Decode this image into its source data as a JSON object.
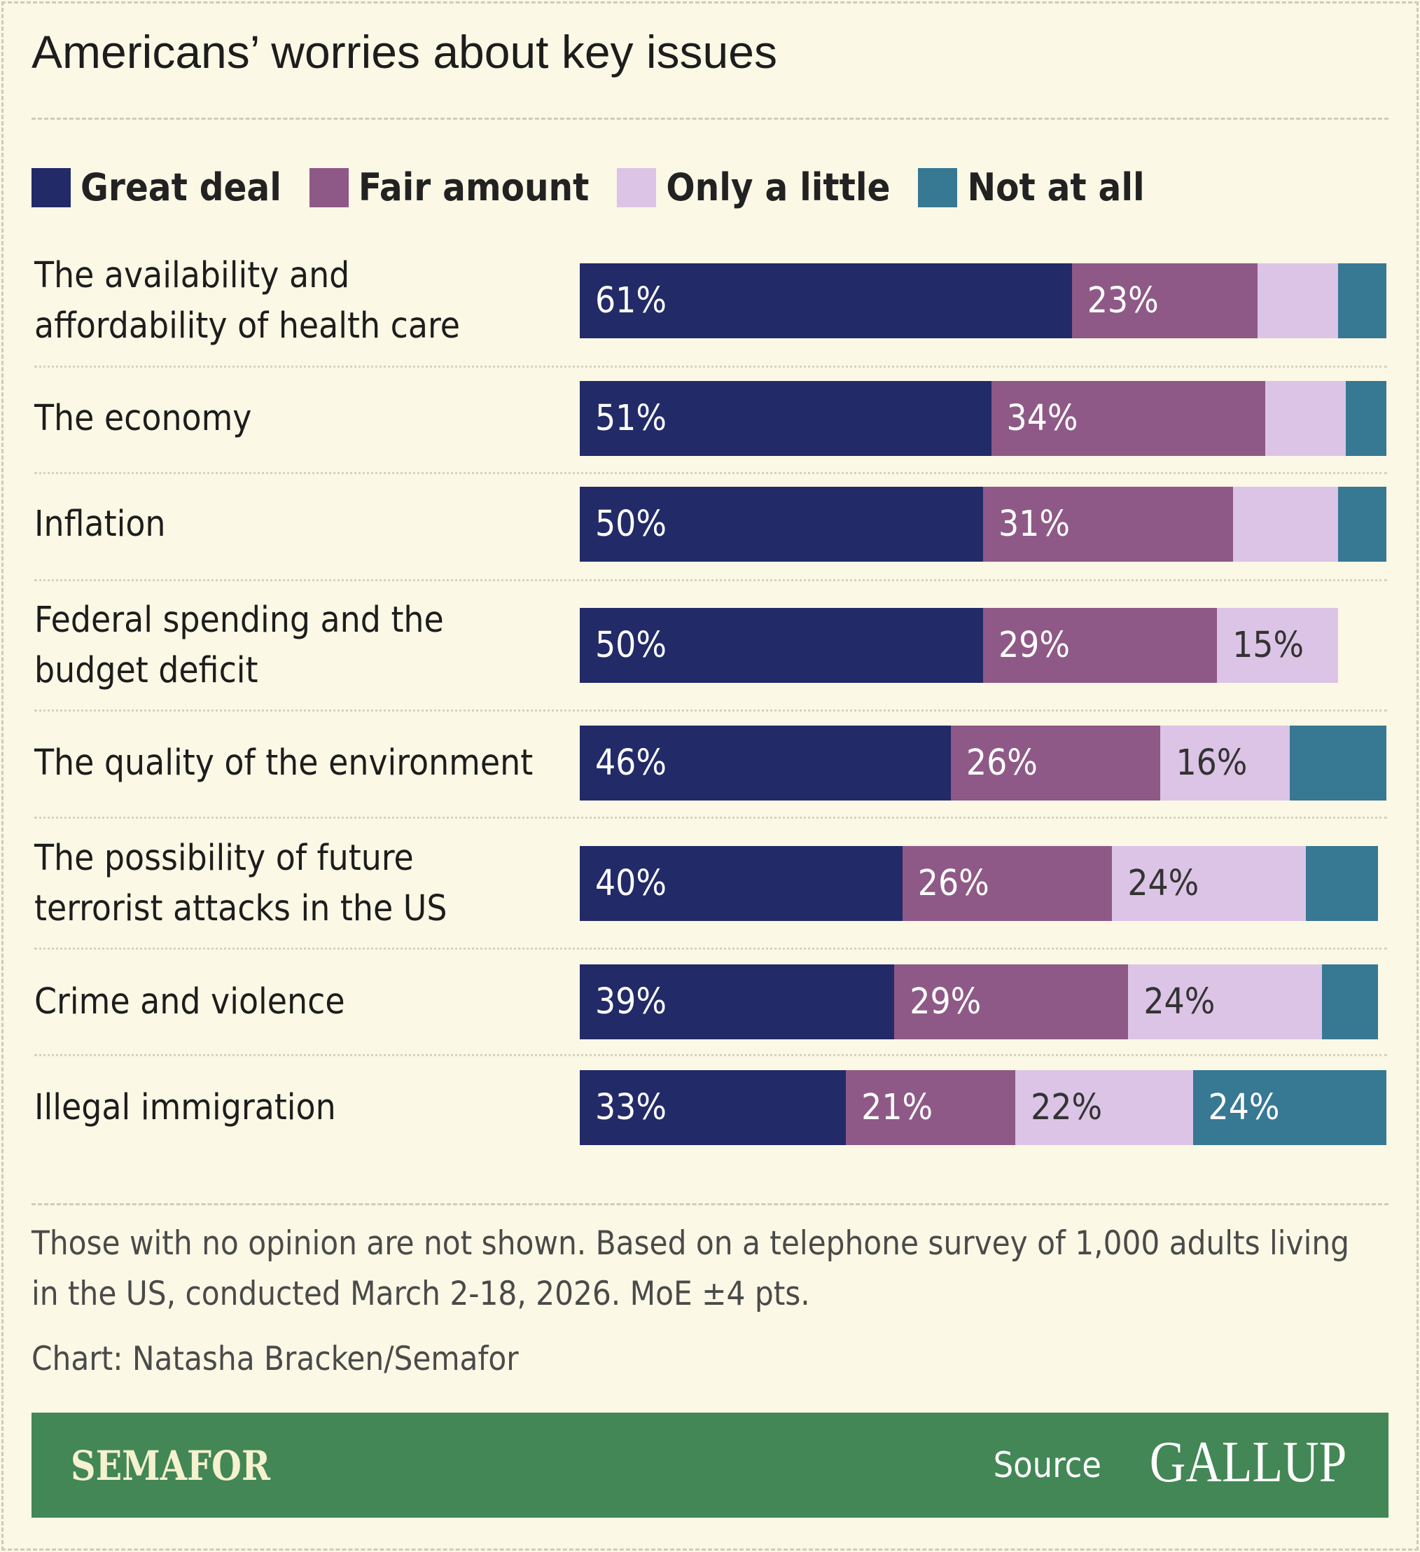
{
  "title": "Americans’ worries about key issues",
  "legend": [
    {
      "label": "Great deal",
      "color": "#222a68"
    },
    {
      "label": "Fair amount",
      "color": "#8e5987"
    },
    {
      "label": "Only a little",
      "color": "#dcc4e6"
    },
    {
      "label": "Not at all",
      "color": "#377893"
    }
  ],
  "chart_data": {
    "type": "bar",
    "orientation": "horizontal",
    "stacked": true,
    "title": "Americans’ worries about key issues",
    "categories": [
      "The availability and affordability of health care",
      "The economy",
      "Inflation",
      "Federal spending and the budget deficit",
      "The quality of the environment",
      "The possibility of future terrorist attacks in the US",
      "Crime and violence",
      "Illegal immigration"
    ],
    "category_lines": [
      [
        "The availability and",
        "affordability of health care"
      ],
      [
        "The economy"
      ],
      [
        "Inflation"
      ],
      [
        "Federal spending and the",
        "budget deficit"
      ],
      [
        "The quality of the environment"
      ],
      [
        "The possibility of future",
        "terrorist attacks in the US"
      ],
      [
        "Crime and violence"
      ],
      [
        "Illegal immigration"
      ]
    ],
    "series": [
      {
        "name": "Great deal",
        "values": [
          61,
          51,
          50,
          50,
          46,
          40,
          39,
          33
        ],
        "labeled": [
          true,
          true,
          true,
          true,
          true,
          true,
          true,
          true
        ]
      },
      {
        "name": "Fair amount",
        "values": [
          23,
          34,
          31,
          29,
          26,
          26,
          29,
          21
        ],
        "labeled": [
          true,
          true,
          true,
          true,
          true,
          true,
          true,
          true
        ]
      },
      {
        "name": "Only a little",
        "values": [
          10,
          10,
          13,
          15,
          16,
          24,
          24,
          22
        ],
        "labeled": [
          false,
          false,
          false,
          true,
          true,
          true,
          true,
          true
        ]
      },
      {
        "name": "Not at all",
        "values": [
          6,
          5,
          6,
          0,
          12,
          9,
          7,
          24
        ],
        "labeled": [
          false,
          false,
          false,
          false,
          false,
          false,
          false,
          true
        ]
      }
    ],
    "xlim": [
      0,
      100
    ],
    "value_suffix": "%",
    "grid": false,
    "legend_position": "top"
  },
  "footer": {
    "note": "Those with no opinion are not shown. Based on a telephone survey of 1,000 adults living in the US, conducted March 2-18, 2026. MoE ±4 pts.",
    "credit": "Chart: Natasha Bracken/Semafor",
    "brand": "SEMAFOR",
    "source_label": "Source",
    "source_name": "GALLUP"
  }
}
